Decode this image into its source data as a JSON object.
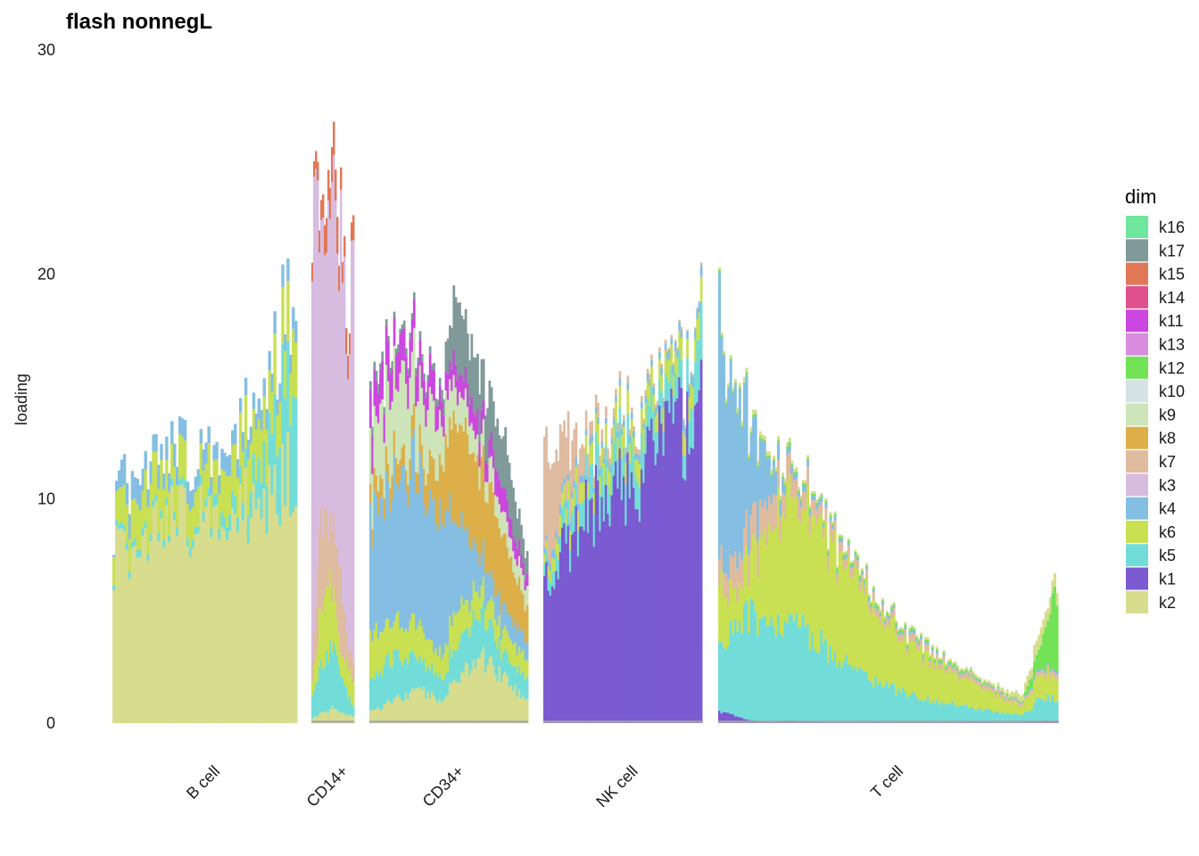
{
  "chart_data": {
    "type": "bar",
    "title": "flash nonnegL",
    "xlabel": "",
    "ylabel": "loading",
    "ylim": [
      0,
      30
    ],
    "yticks": [
      0,
      10,
      20,
      30
    ],
    "grid": false,
    "legend": {
      "title": "dim",
      "position": "right",
      "entries": [
        {
          "name": "k16",
          "color": "#6EE69C"
        },
        {
          "name": "k17",
          "color": "#809A99"
        },
        {
          "name": "k15",
          "color": "#E07858"
        },
        {
          "name": "k14",
          "color": "#E0508E"
        },
        {
          "name": "k11",
          "color": "#CC46E0"
        },
        {
          "name": "k13",
          "color": "#D98BDE"
        },
        {
          "name": "k12",
          "color": "#72E356"
        },
        {
          "name": "k10",
          "color": "#D4E3E4"
        },
        {
          "name": "k9",
          "color": "#CDE5B8"
        },
        {
          "name": "k8",
          "color": "#DDAF49"
        },
        {
          "name": "k7",
          "color": "#DFBBA0"
        },
        {
          "name": "k3",
          "color": "#D8BCE0"
        },
        {
          "name": "k4",
          "color": "#84BFE3"
        },
        {
          "name": "k6",
          "color": "#C9E052"
        },
        {
          "name": "k5",
          "color": "#72DDD8"
        },
        {
          "name": "k1",
          "color": "#7B5AD2"
        },
        {
          "name": "k2",
          "color": "#D7DD8C"
        }
      ]
    },
    "groups": [
      {
        "name": "B cell",
        "profile": [
          [
            0,
            7.4,
            0.2,
            1.1,
            0.1
          ],
          [
            0.05,
            7.8,
            0.3,
            1.5,
            1.2
          ],
          [
            0.2,
            8.7,
            0.3,
            2.0,
            0.9
          ],
          [
            0.5,
            9.0,
            0.4,
            1.7,
            0.8
          ],
          [
            0.7,
            9.5,
            0.8,
            2.1,
            0.8
          ],
          [
            0.85,
            10.2,
            2.0,
            2.2,
            0.8
          ],
          [
            0.95,
            11.0,
            4.5,
            2.4,
            0.9
          ],
          [
            1.0,
            11.5,
            5.5,
            2.5,
            0.9
          ]
        ]
      },
      {
        "name": "CD14+",
        "profile": [
          [
            0,
            0.2,
            1.2,
            0.6,
            0.8,
            19.5,
            0.8
          ],
          [
            0.2,
            0.4,
            2.0,
            2.5,
            4.5,
            14.0,
            1.0
          ],
          [
            0.4,
            0.5,
            2.8,
            3.2,
            2.5,
            13.5,
            1.5
          ],
          [
            0.55,
            0.8,
            2.5,
            2.0,
            2.8,
            15.0,
            1.5
          ],
          [
            0.7,
            0.5,
            1.5,
            1.0,
            3.5,
            14.5,
            1.2
          ],
          [
            0.85,
            0.4,
            1.0,
            1.2,
            1.0,
            15.0,
            1.0
          ],
          [
            1.0,
            0.3,
            0.4,
            1.0,
            1.0,
            16.0,
            1.0
          ]
        ]
      },
      {
        "name": "CD34+",
        "profile": [
          [
            0,
            0.5,
            1.2,
            2.0,
            5.0,
            1.0,
            2.5,
            1.5,
            0.4
          ],
          [
            0.15,
            1.0,
            2.0,
            1.5,
            6.5,
            1.0,
            3.5,
            1.5,
            0.3
          ],
          [
            0.3,
            1.5,
            1.5,
            1.5,
            7.0,
            1.0,
            3.0,
            1.5,
            0.3
          ],
          [
            0.45,
            1.0,
            1.0,
            1.0,
            6.5,
            2.0,
            2.0,
            1.0,
            0.3
          ],
          [
            0.55,
            2.0,
            1.5,
            1.5,
            4.0,
            5.0,
            1.5,
            1.0,
            3.0
          ],
          [
            0.7,
            3.0,
            2.0,
            1.0,
            1.5,
            4.0,
            1.0,
            1.0,
            2.0
          ],
          [
            0.85,
            2.0,
            1.0,
            1.0,
            1.0,
            3.0,
            1.0,
            1.0,
            2.5
          ],
          [
            1.0,
            1.0,
            1.0,
            0.8,
            0.8,
            1.5,
            0.8,
            0.5,
            1.0
          ]
        ]
      },
      {
        "name": "NK cell",
        "profile": [
          [
            0,
            6.5,
            0.5,
            0.4,
            0.3,
            4.5
          ],
          [
            0.1,
            7.8,
            0.8,
            0.8,
            0.4,
            3.0
          ],
          [
            0.3,
            9.5,
            1.4,
            0.8,
            0.3,
            0.6
          ],
          [
            0.5,
            10.5,
            1.6,
            0.9,
            0.3,
            0.3
          ],
          [
            0.7,
            11.8,
            1.2,
            0.9,
            0.3,
            0.2
          ],
          [
            0.9,
            13.2,
            1.2,
            0.9,
            0.4,
            0.1
          ],
          [
            1.0,
            14.5,
            2.8,
            1.2,
            0.5,
            0.1
          ]
        ]
      },
      {
        "name": "T cell",
        "profile": [
          [
            0,
            0.5,
            3.0,
            3.0,
            1.0,
            11.0,
            0.1,
            0.1
          ],
          [
            0.05,
            0.3,
            4.0,
            1.5,
            1.5,
            7.0,
            0.1,
            0.2
          ],
          [
            0.1,
            0.1,
            5.0,
            2.5,
            1.5,
            4.0,
            0.1,
            0.2
          ],
          [
            0.15,
            0.05,
            4.0,
            4.0,
            1.5,
            1.5,
            0.1,
            0.2
          ],
          [
            0.2,
            0.1,
            4.5,
            5.5,
            1.0,
            0.3,
            0.1,
            0.2
          ],
          [
            0.3,
            0.05,
            3.5,
            5.0,
            0.6,
            0.2,
            0.1,
            0.1
          ],
          [
            0.4,
            0.05,
            2.2,
            4.2,
            0.4,
            0.1,
            0.1,
            0.1
          ],
          [
            0.5,
            0.05,
            1.6,
            2.7,
            0.3,
            0.1,
            0.1,
            0.1
          ],
          [
            0.6,
            0.05,
            1.1,
            2.0,
            0.3,
            0.1,
            0.1,
            0.1
          ],
          [
            0.7,
            0.05,
            0.8,
            1.4,
            0.2,
            0.05,
            0.1,
            0.1
          ],
          [
            0.8,
            0.05,
            0.5,
            0.8,
            0.2,
            0.05,
            0.05,
            0.1
          ],
          [
            0.9,
            0.05,
            0.3,
            0.4,
            0.1,
            0.05,
            0.05,
            0.3
          ],
          [
            0.95,
            0.1,
            1.0,
            1.0,
            0.2,
            0.1,
            1.0,
            0.8
          ],
          [
            1.0,
            0.1,
            1.0,
            1.0,
            0.3,
            0.1,
            3.5,
            0.5
          ]
        ]
      }
    ]
  }
}
